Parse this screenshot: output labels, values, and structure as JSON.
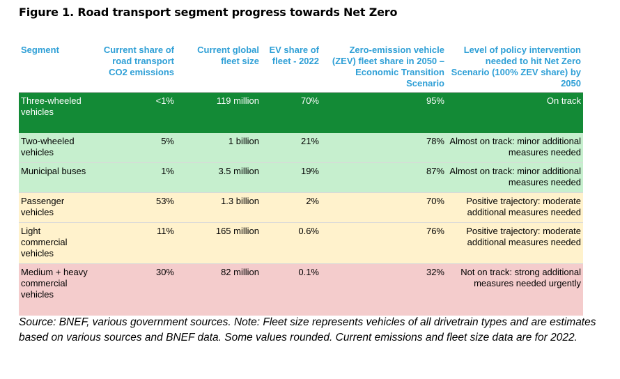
{
  "figure_title": "Figure 1. Road transport segment progress towards Net Zero",
  "colors": {
    "header_text": "#2e9fd6",
    "on_track": "#138a36",
    "almost_on_track": "#c6efce",
    "positive_trajectory": "#fff2cc",
    "not_on_track": "#f4cccc"
  },
  "table": {
    "headers": [
      "Segment",
      "Current share of road transport CO2 emissions",
      "Current global fleet size",
      "EV share of fleet - 2022",
      "Zero-emission vehicle (ZEV) fleet share in 2050 – Economic Transition Scenario",
      "Level of policy intervention needed to hit Net Zero Scenario (100% ZEV share) by 2050"
    ],
    "rows": [
      {
        "segment": "Three-wheeled vehicles",
        "co2_share": "<1%",
        "fleet_size": "119 million",
        "ev_share": "70%",
        "zev_2050": "95%",
        "policy": "On track",
        "status": "on_track"
      },
      {
        "segment": "Two-wheeled vehicles",
        "co2_share": "5%",
        "fleet_size": "1 billion",
        "ev_share": "21%",
        "zev_2050": "78%",
        "policy": "Almost on track: minor additional measures needed",
        "status": "almost_on_track"
      },
      {
        "segment": "Municipal buses",
        "co2_share": "1%",
        "fleet_size": "3.5 million",
        "ev_share": "19%",
        "zev_2050": "87%",
        "policy": "Almost on track: minor additional measures needed",
        "status": "almost_on_track"
      },
      {
        "segment": "Passenger vehicles",
        "co2_share": "53%",
        "fleet_size": "1.3 billion",
        "ev_share": "2%",
        "zev_2050": "70%",
        "policy": "Positive trajectory: moderate additional measures needed",
        "status": "positive_trajectory"
      },
      {
        "segment": "Light commercial vehicles",
        "co2_share": "11%",
        "fleet_size": "165 million",
        "ev_share": "0.6%",
        "zev_2050": "76%",
        "policy": "Positive trajectory: moderate additional measures needed",
        "status": "positive_trajectory"
      },
      {
        "segment": "Medium + heavy commercial vehicles",
        "co2_share": "30%",
        "fleet_size": "82 million",
        "ev_share": "0.1%",
        "zev_2050": "32%",
        "policy": "Not on track: strong additional measures needed urgently",
        "status": "not_on_track"
      }
    ]
  },
  "source_note": "Source: BNEF, various government sources. Note: Fleet size represents vehicles of all drivetrain types and are estimates based on various sources and BNEF data. Some values rounded. Current emissions and fleet size data are for 2022."
}
